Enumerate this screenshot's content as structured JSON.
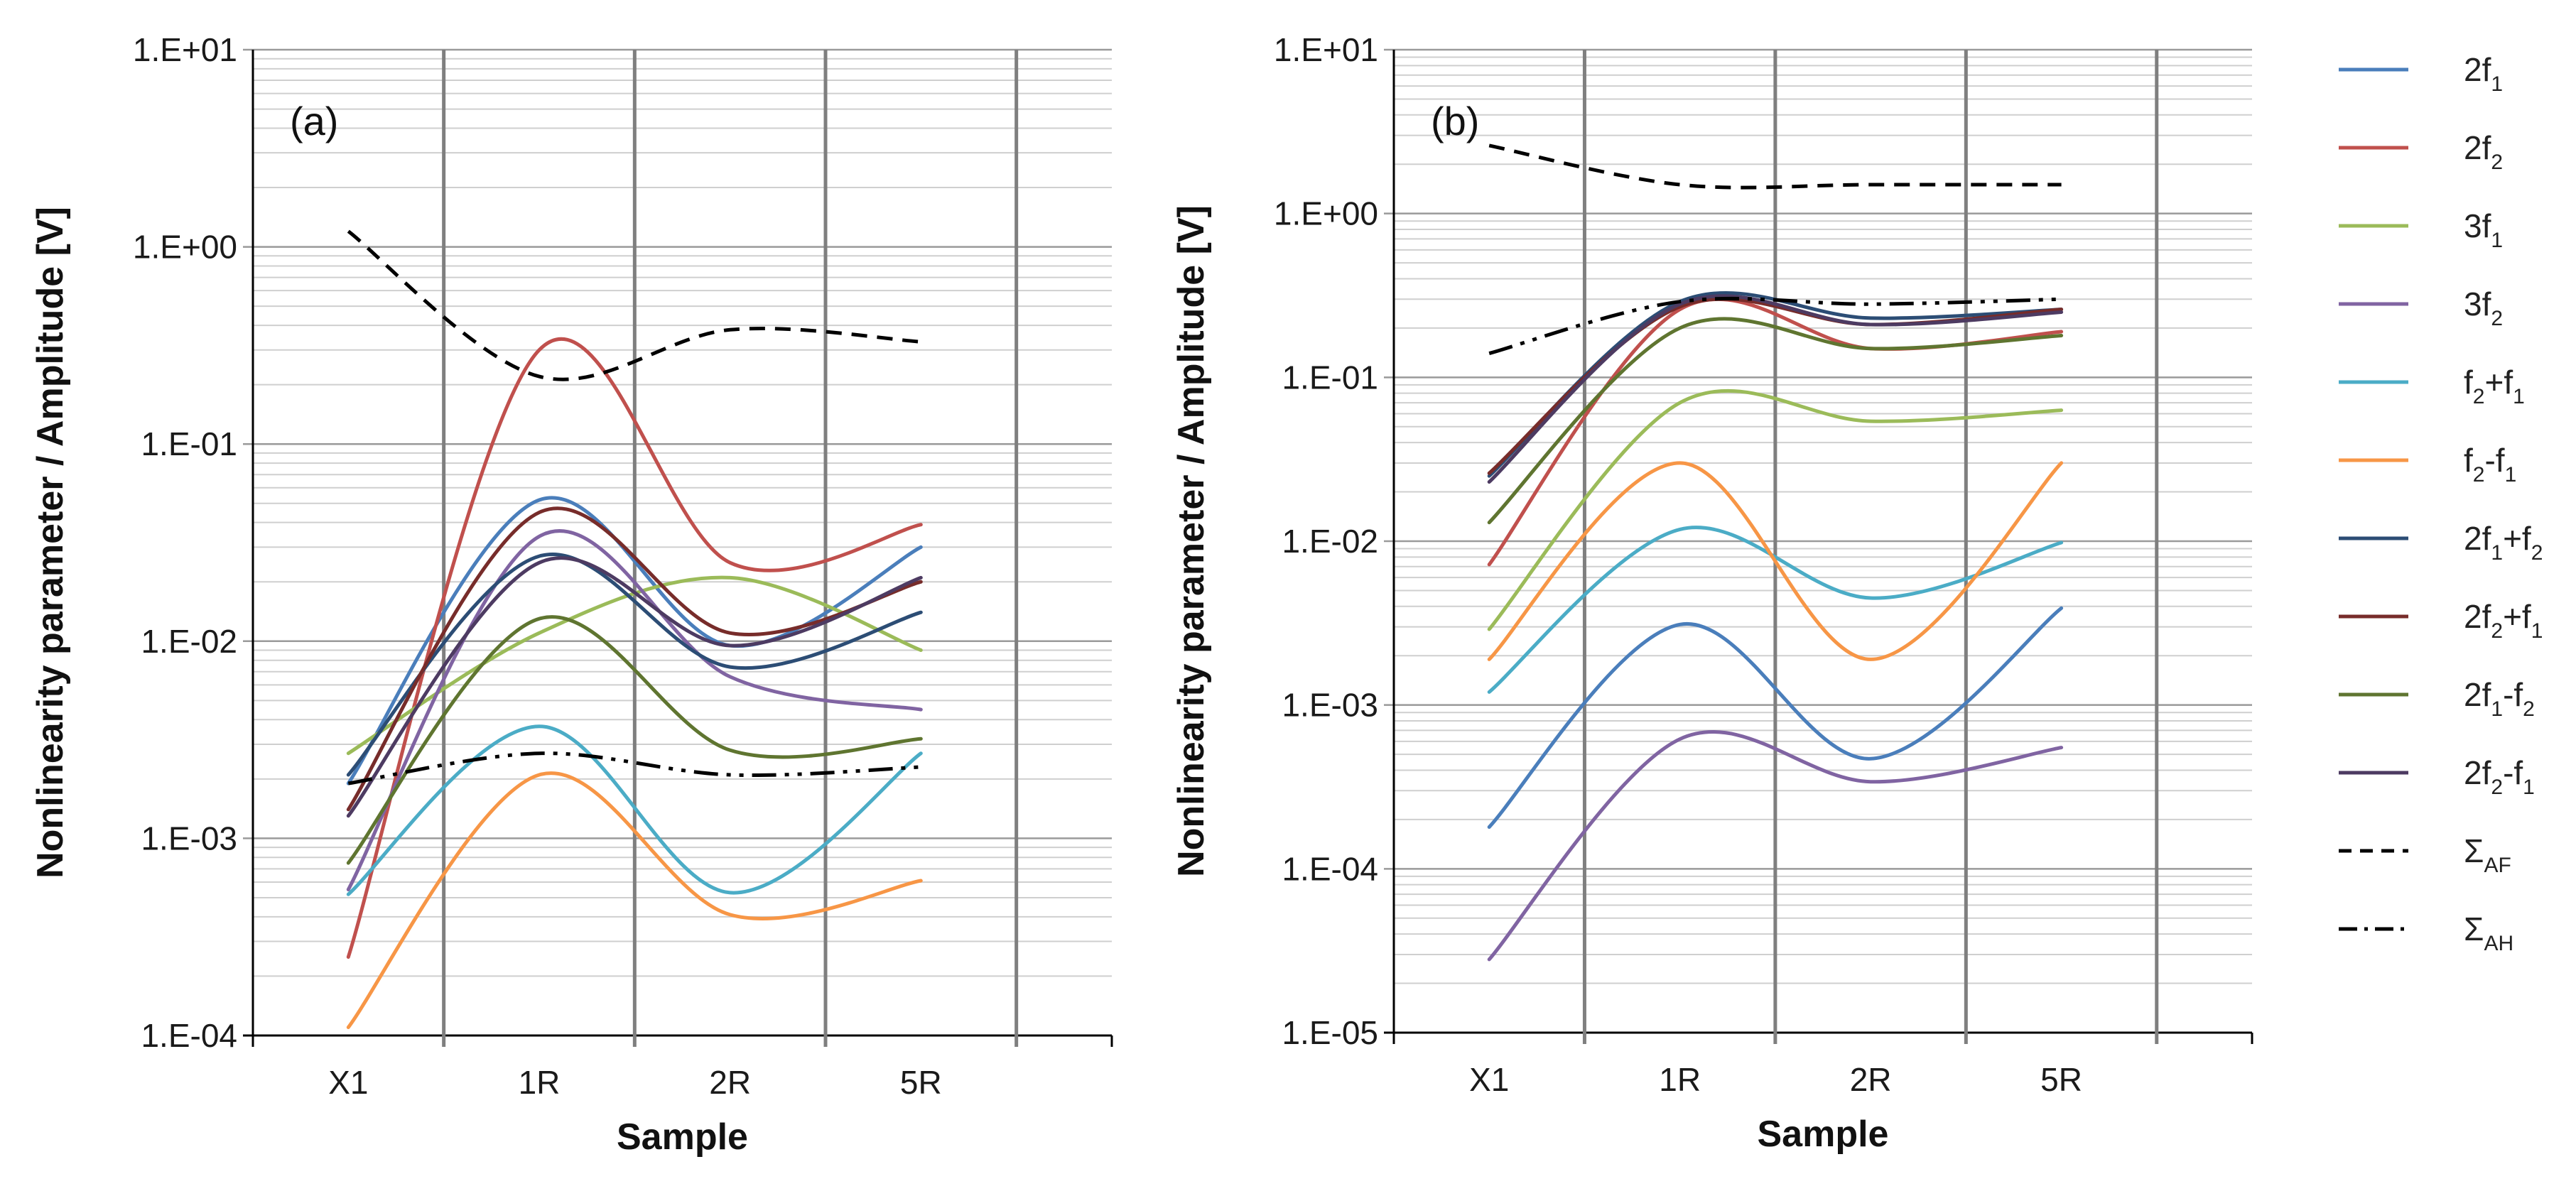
{
  "chart_data": [
    {
      "type": "line",
      "panel_label": "(a)",
      "xlabel": "Sample",
      "ylabel": "Nonlinearity parameter / Amplitude [V]",
      "categories": [
        "X1",
        "1R",
        "2R",
        "5R"
      ],
      "yscale": "log",
      "ylim": [
        0.0001,
        10
      ],
      "yticks": [
        "1.E-04",
        "1.E-03",
        "1.E-02",
        "1.E-01",
        "1.E+00",
        "1.E+01"
      ],
      "grid": true,
      "series": [
        {
          "name": "2f1",
          "color": "#4a7ebb",
          "style": "solid",
          "values": [
            0.0019,
            0.052,
            0.0095,
            0.03
          ]
        },
        {
          "name": "2f2",
          "color": "#c0504d",
          "style": "solid",
          "values": [
            0.00025,
            0.3,
            0.025,
            0.039
          ]
        },
        {
          "name": "3f1",
          "color": "#9bbb59",
          "style": "solid",
          "values": [
            0.0027,
            0.011,
            0.021,
            0.009
          ]
        },
        {
          "name": "3f2",
          "color": "#8064a2",
          "style": "solid",
          "values": [
            0.00055,
            0.034,
            0.0066,
            0.0045
          ]
        },
        {
          "name": "f2+f1",
          "color": "#4bacc6",
          "style": "solid",
          "values": [
            0.00052,
            0.0037,
            0.00053,
            0.0027
          ]
        },
        {
          "name": "f2-f1",
          "color": "#f79646",
          "style": "solid",
          "values": [
            0.00011,
            0.0021,
            0.00041,
            0.00061
          ]
        },
        {
          "name": "2f1+f2",
          "color": "#2c4d75",
          "style": "solid",
          "values": [
            0.0021,
            0.027,
            0.0074,
            0.014
          ]
        },
        {
          "name": "2f2+f1",
          "color": "#772c2a",
          "style": "solid",
          "values": [
            0.0014,
            0.045,
            0.011,
            0.02
          ]
        },
        {
          "name": "2f1-f2",
          "color": "#5f7530",
          "style": "solid",
          "values": [
            0.00075,
            0.013,
            0.0028,
            0.0032
          ]
        },
        {
          "name": "2f2-f1",
          "color": "#4d3b62",
          "style": "solid",
          "values": [
            0.0013,
            0.025,
            0.0095,
            0.021
          ]
        },
        {
          "name": "ΣAF",
          "color": "#000000",
          "style": "dash",
          "values": [
            1.2,
            0.22,
            0.38,
            0.33
          ]
        },
        {
          "name": "ΣAH",
          "color": "#000000",
          "style": "dashdot",
          "values": [
            0.0019,
            0.0027,
            0.0021,
            0.0023
          ]
        }
      ]
    },
    {
      "type": "line",
      "panel_label": "(b)",
      "xlabel": "Sample",
      "ylabel": "Nonlinearity parameter / Amplitude [V]",
      "categories": [
        "X1",
        "1R",
        "2R",
        "5R"
      ],
      "yscale": "log",
      "ylim": [
        1e-05,
        10
      ],
      "yticks": [
        "1.E-05",
        "1.E-04",
        "1.E-03",
        "1.E-02",
        "1.E-01",
        "1.E+00",
        "1.E+01"
      ],
      "grid": true,
      "series": [
        {
          "name": "2f1",
          "color": "#4a7ebb",
          "style": "solid",
          "values": [
            0.00018,
            0.0031,
            0.00047,
            0.0039
          ]
        },
        {
          "name": "2f2",
          "color": "#c0504d",
          "style": "solid",
          "values": [
            0.0072,
            0.26,
            0.15,
            0.19
          ]
        },
        {
          "name": "3f1",
          "color": "#9bbb59",
          "style": "solid",
          "values": [
            0.0029,
            0.07,
            0.054,
            0.063
          ]
        },
        {
          "name": "3f2",
          "color": "#8064a2",
          "style": "solid",
          "values": [
            2.8e-05,
            0.00062,
            0.00034,
            0.00055
          ]
        },
        {
          "name": "f2+f1",
          "color": "#4bacc6",
          "style": "solid",
          "values": [
            0.0012,
            0.0118,
            0.0045,
            0.0098
          ]
        },
        {
          "name": "f2-f1",
          "color": "#f79646",
          "style": "solid",
          "values": [
            0.0019,
            0.03,
            0.0019,
            0.03
          ]
        },
        {
          "name": "2f1+f2",
          "color": "#2c4d75",
          "style": "solid",
          "values": [
            0.025,
            0.29,
            0.23,
            0.26
          ]
        },
        {
          "name": "2f2+f1",
          "color": "#772c2a",
          "style": "solid",
          "values": [
            0.026,
            0.27,
            0.21,
            0.26
          ]
        },
        {
          "name": "2f1-f2",
          "color": "#5f7530",
          "style": "solid",
          "values": [
            0.013,
            0.2,
            0.15,
            0.18
          ]
        },
        {
          "name": "2f2-f1",
          "color": "#4d3b62",
          "style": "solid",
          "values": [
            0.023,
            0.28,
            0.21,
            0.25
          ]
        },
        {
          "name": "ΣAF",
          "color": "#000000",
          "style": "dash",
          "values": [
            2.6,
            1.5,
            1.5,
            1.5
          ]
        },
        {
          "name": "ΣAH",
          "color": "#000000",
          "style": "dashdot",
          "values": [
            0.14,
            0.29,
            0.28,
            0.3
          ]
        }
      ]
    }
  ],
  "legend": {
    "placement": "right",
    "items": [
      {
        "main": "2f",
        "sub": "1",
        "color": "#4a7ebb",
        "style": "solid"
      },
      {
        "main": "2f",
        "sub": "2",
        "color": "#c0504d",
        "style": "solid"
      },
      {
        "main": "3f",
        "sub": "1",
        "color": "#9bbb59",
        "style": "solid"
      },
      {
        "main": "3f",
        "sub": "2",
        "color": "#8064a2",
        "style": "solid"
      },
      {
        "main": "f",
        "sub": "2",
        "main2": "+f",
        "sub2": "1",
        "color": "#4bacc6",
        "style": "solid"
      },
      {
        "main": "f",
        "sub": "2",
        "main2": "-f",
        "sub2": "1",
        "color": "#f79646",
        "style": "solid"
      },
      {
        "main": "2f",
        "sub": "1",
        "main2": "+f",
        "sub2": "2",
        "color": "#2c4d75",
        "style": "solid"
      },
      {
        "main": "2f",
        "sub": "2",
        "main2": "+f",
        "sub2": "1",
        "color": "#772c2a",
        "style": "solid"
      },
      {
        "main": "2f",
        "sub": "1",
        "main2": "-f",
        "sub2": "2",
        "color": "#5f7530",
        "style": "solid"
      },
      {
        "main": "2f",
        "sub": "2",
        "main2": "-f",
        "sub2": "1",
        "color": "#4d3b62",
        "style": "solid"
      },
      {
        "main": "Σ",
        "sub": "AF",
        "color": "#000000",
        "style": "dash"
      },
      {
        "main": "Σ",
        "sub": "AH",
        "color": "#000000",
        "style": "dashdot"
      }
    ]
  }
}
